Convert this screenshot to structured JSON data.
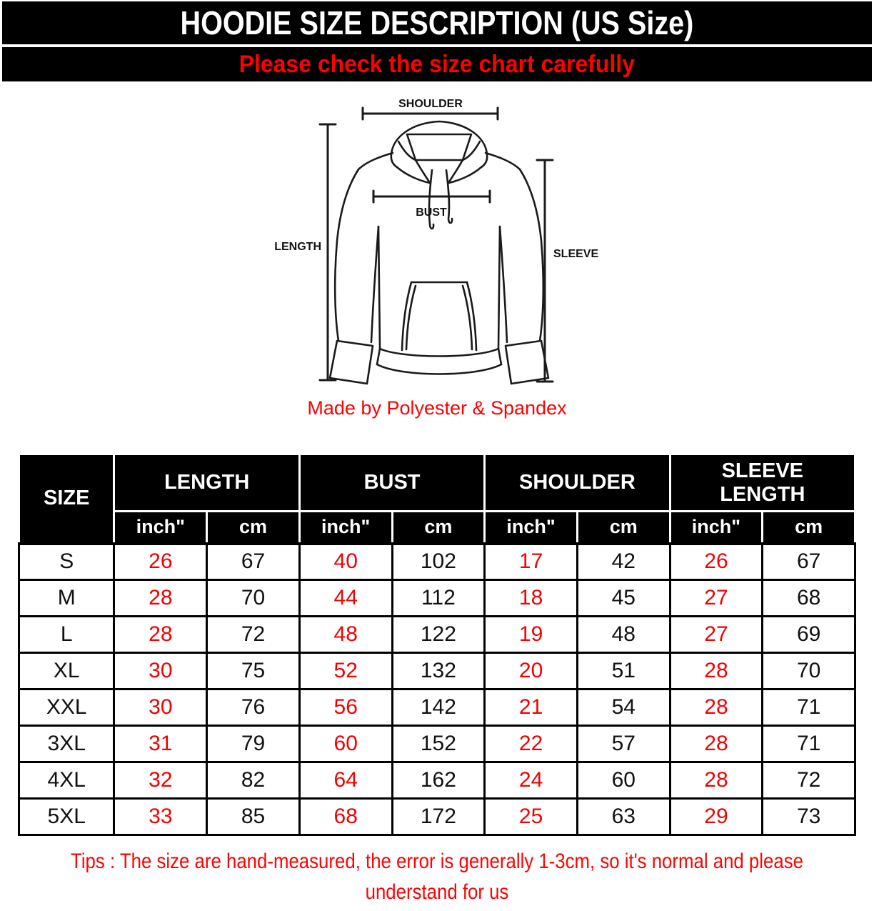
{
  "header": {
    "title": "HOODIE SIZE DESCRIPTION (US Size)",
    "subtitle": "Please check the size chart carefully"
  },
  "diagram": {
    "labels": {
      "shoulder": "SHOULDER",
      "length": "LENGTH",
      "bust": "BUST",
      "sleeve": "SLEEVE"
    },
    "made_by": "Made by Polyester & Spandex"
  },
  "table": {
    "size_header": "SIZE",
    "groups": [
      {
        "label": "LENGTH"
      },
      {
        "label": "BUST"
      },
      {
        "label": "SHOULDER"
      },
      {
        "label": "SLEEVE LENGTH"
      }
    ],
    "units": {
      "inch": "inch\"",
      "cm": "cm"
    },
    "rows": [
      {
        "size": "S",
        "values": [
          26,
          67,
          40,
          102,
          17,
          42,
          26,
          67
        ]
      },
      {
        "size": "M",
        "values": [
          28,
          70,
          44,
          112,
          18,
          45,
          27,
          68
        ]
      },
      {
        "size": "L",
        "values": [
          28,
          72,
          48,
          122,
          19,
          48,
          27,
          69
        ]
      },
      {
        "size": "XL",
        "values": [
          30,
          75,
          52,
          132,
          20,
          51,
          28,
          70
        ]
      },
      {
        "size": "XXL",
        "values": [
          30,
          76,
          56,
          142,
          21,
          54,
          28,
          71
        ]
      },
      {
        "size": "3XL",
        "values": [
          31,
          79,
          60,
          152,
          22,
          57,
          28,
          71
        ]
      },
      {
        "size": "4XL",
        "values": [
          32,
          82,
          64,
          162,
          24,
          60,
          28,
          72
        ]
      },
      {
        "size": "5XL",
        "values": [
          33,
          85,
          68,
          172,
          25,
          63,
          29,
          73
        ]
      }
    ]
  },
  "tips": {
    "line1": "Tips : The size are hand-measured, the error is generally 1-3cm, so it's normal and please",
    "line2": "understand for us"
  },
  "colors": {
    "accent_red": "#FF0000",
    "header_bg": "#000000",
    "header_text": "#FFFFFF"
  }
}
